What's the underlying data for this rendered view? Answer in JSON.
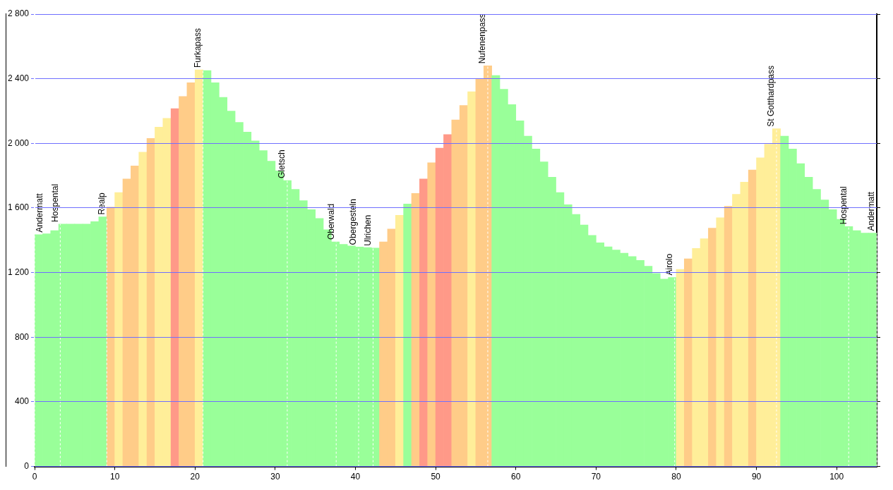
{
  "chart_data": {
    "type": "bar",
    "x": [
      0.5,
      1.5,
      2.5,
      3.5,
      4.5,
      5.5,
      6.5,
      7.5,
      8.5,
      9.5,
      10.5,
      11.5,
      12.5,
      13.5,
      14.5,
      15.5,
      16.5,
      17.5,
      18.5,
      19.5,
      20.5,
      21.5,
      22.5,
      23.5,
      24.5,
      25.5,
      26.5,
      27.5,
      28.5,
      29.5,
      30.5,
      31.5,
      32.5,
      33.5,
      34.5,
      35.5,
      36.5,
      37.5,
      38.5,
      39.5,
      40.5,
      41.5,
      42.5,
      43.5,
      44.5,
      45.5,
      46.5,
      47.5,
      48.5,
      49.5,
      50.5,
      51.5,
      52.5,
      53.5,
      54.5,
      55.5,
      56.5,
      57.5,
      58.5,
      59.5,
      60.5,
      61.5,
      62.5,
      63.5,
      64.5,
      65.5,
      66.5,
      67.5,
      68.5,
      69.5,
      70.5,
      71.5,
      72.5,
      73.5,
      74.5,
      75.5,
      76.5,
      77.5,
      78.5,
      79.5,
      80.5,
      81.5,
      82.5,
      83.5,
      84.5,
      85.5,
      86.5,
      87.5,
      88.5,
      89.5,
      90.5,
      91.5,
      92.5,
      93.5,
      94.5,
      95.5,
      96.5,
      97.5,
      98.5,
      99.5,
      100.5,
      101.5,
      102.5,
      103.5,
      104.5
    ],
    "series": [
      {
        "values": [
          1435,
          1440,
          1460,
          1500,
          1500,
          1500,
          1500,
          1515,
          1545,
          1605,
          1695,
          1780,
          1860,
          1945,
          2030,
          2100,
          2155,
          2215,
          2290,
          2375,
          2455,
          2450,
          2375,
          2285,
          2200,
          2130,
          2070,
          2015,
          1955,
          1890,
          1830,
          1770,
          1715,
          1645,
          1590,
          1535,
          1465,
          1390,
          1375,
          1365,
          1358,
          1355,
          1352,
          1390,
          1470,
          1555,
          1625,
          1690,
          1780,
          1880,
          1970,
          2055,
          2145,
          2235,
          2320,
          2400,
          2480,
          2420,
          2335,
          2240,
          2140,
          2045,
          1965,
          1885,
          1790,
          1695,
          1620,
          1560,
          1495,
          1430,
          1385,
          1360,
          1340,
          1320,
          1300,
          1275,
          1240,
          1195,
          1160,
          1170,
          1220,
          1285,
          1350,
          1410,
          1475,
          1540,
          1610,
          1685,
          1760,
          1835,
          1910,
          1995,
          2090,
          2045,
          1965,
          1875,
          1790,
          1715,
          1650,
          1590,
          1530,
          1485,
          1460,
          1445,
          1445
        ],
        "colors": [
          "#99ff99",
          "#99ff99",
          "#99ff99",
          "#99ff99",
          "#99ff99",
          "#99ff99",
          "#99ff99",
          "#99ff99",
          "#99ff99",
          "#ffcc88",
          "#ffee99",
          "#ffcc88",
          "#ffcc88",
          "#ffee99",
          "#ffcc88",
          "#ffee99",
          "#ffee99",
          "#ff9988",
          "#ffcc88",
          "#ffcc88",
          "#ffee99",
          "#99ff99",
          "#99ff99",
          "#99ff99",
          "#99ff99",
          "#99ff99",
          "#99ff99",
          "#99ff99",
          "#99ff99",
          "#99ff99",
          "#99ff99",
          "#99ff99",
          "#99ff99",
          "#99ff99",
          "#99ff99",
          "#99ff99",
          "#99ff99",
          "#99ff99",
          "#99ff99",
          "#99ff99",
          "#99ff99",
          "#99ff99",
          "#99ff99",
          "#ffcc88",
          "#ffcc88",
          "#ffee99",
          "#99ff99",
          "#ffcc88",
          "#ff9988",
          "#ffcc88",
          "#ff9988",
          "#ff9988",
          "#ffcc88",
          "#ffcc88",
          "#ffee99",
          "#ffcc88",
          "#ffcc88",
          "#99ff99",
          "#99ff99",
          "#99ff99",
          "#99ff99",
          "#99ff99",
          "#99ff99",
          "#99ff99",
          "#99ff99",
          "#99ff99",
          "#99ff99",
          "#99ff99",
          "#99ff99",
          "#99ff99",
          "#99ff99",
          "#99ff99",
          "#99ff99",
          "#99ff99",
          "#99ff99",
          "#99ff99",
          "#99ff99",
          "#99ff99",
          "#99ff99",
          "#99ff99",
          "#ffee99",
          "#ffcc88",
          "#ffee99",
          "#ffee99",
          "#ffcc88",
          "#ffee99",
          "#ffcc88",
          "#ffee99",
          "#ffee99",
          "#ffcc88",
          "#ffee99",
          "#ffee99",
          "#ffee99",
          "#99ff99",
          "#99ff99",
          "#99ff99",
          "#99ff99",
          "#99ff99",
          "#99ff99",
          "#99ff99",
          "#99ff99",
          "#99ff99",
          "#99ff99",
          "#99ff99",
          "#99ff99"
        ]
      }
    ],
    "xlim": [
      0,
      105
    ],
    "xticks": [
      0,
      10,
      20,
      30,
      40,
      50,
      60,
      70,
      80,
      90,
      100
    ],
    "ylim": [
      0,
      2800
    ],
    "yticks": [
      0,
      400,
      800,
      {
        "value": 1200,
        "label": "1 200"
      },
      {
        "value": 1600,
        "label": "1 600"
      },
      {
        "value": 2000,
        "label": "2 000"
      },
      {
        "value": 2400,
        "label": "2 400"
      },
      {
        "value": 2800,
        "label": "2 800"
      }
    ],
    "grid": "y",
    "ref_lines": [
      {
        "axis": "x",
        "value": 0,
        "label": "Andermatt",
        "color": "#ffffff",
        "line_style": "dashed"
      },
      {
        "axis": "x",
        "value": 3.2,
        "label": "Hospental",
        "color": "#ffffff",
        "line_style": "dashed"
      },
      {
        "axis": "x",
        "value": 9,
        "label": "Realp",
        "color": "#ffffff",
        "line_style": "dashed"
      },
      {
        "axis": "x",
        "value": 21,
        "label": "Furkapass",
        "color": "#ffffff",
        "line_style": "dashed"
      },
      {
        "axis": "x",
        "value": 31.5,
        "label": "Gletsch",
        "color": "#ffffff",
        "line_style": "dashed"
      },
      {
        "axis": "x",
        "value": 37.6,
        "label": "Oberwald",
        "color": "#ffffff",
        "line_style": "dashed"
      },
      {
        "axis": "x",
        "value": 40.4,
        "label": "Obergesteln",
        "color": "#ffffff",
        "line_style": "dashed"
      },
      {
        "axis": "x",
        "value": 42.2,
        "label": "Ulrichen",
        "color": "#ffffff",
        "line_style": "dashed"
      },
      {
        "axis": "x",
        "value": 56.5,
        "label": "Nufenenpass",
        "color": "#ffffff",
        "line_style": "dashed"
      },
      {
        "axis": "x",
        "value": 79.8,
        "label": "Airolo",
        "color": "#ffffff",
        "line_style": "dashed"
      },
      {
        "axis": "x",
        "value": 92.5,
        "label": "St Gotthardpass",
        "color": "#ffffff",
        "line_style": "dashed"
      },
      {
        "axis": "x",
        "value": 101.5,
        "label": "Hospental",
        "color": "#ffffff",
        "line_style": "dashed"
      },
      {
        "axis": "x",
        "value": 105,
        "label": "Andermatt",
        "color": "#ffffff",
        "line_style": "dashed"
      }
    ]
  }
}
